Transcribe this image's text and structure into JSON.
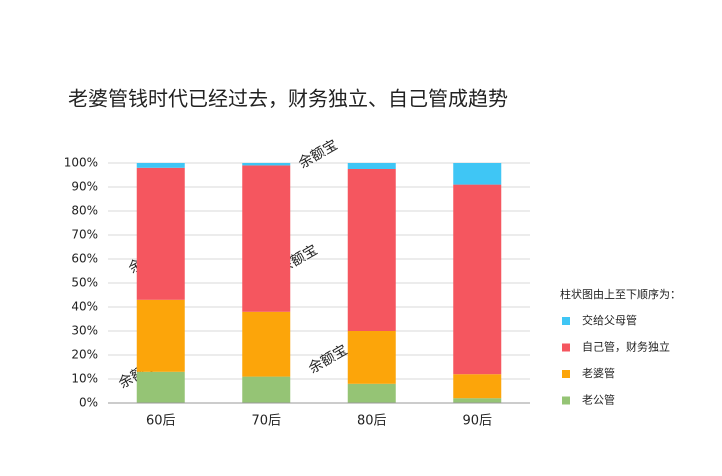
{
  "chart_data": {
    "type": "stacked_bar",
    "title": "老婆管钱时代已经过去，财务独立、自己管成趋势",
    "watermark": "余额宝",
    "categories": [
      "60后",
      "70后",
      "80后",
      "90后"
    ],
    "series": [
      {
        "name": "老公管",
        "color": "#95c475",
        "values": [
          13,
          11,
          8,
          2
        ]
      },
      {
        "name": "老婆管",
        "color": "#fca50a",
        "values": [
          30,
          27,
          22,
          10
        ]
      },
      {
        "name": "自己管，财务独立",
        "color": "#f5565f",
        "values": [
          55,
          61,
          67.5,
          79
        ]
      },
      {
        "name": "交给父母管",
        "color": "#3fc6f5",
        "values": [
          2,
          1,
          2.5,
          9
        ]
      }
    ],
    "legend_title": "柱状图由上至下顺序为：",
    "legend_position": "right",
    "ylim": [
      0,
      100
    ],
    "yticks": [
      {
        "value": 0,
        "label": "0%"
      },
      {
        "value": 10,
        "label": "10%"
      },
      {
        "value": 20,
        "label": "20%"
      },
      {
        "value": 30,
        "label": "30%"
      },
      {
        "value": 40,
        "label": "40%"
      },
      {
        "value": 50,
        "label": "50%"
      },
      {
        "value": 60,
        "label": "60%"
      },
      {
        "value": 70,
        "label": "70%"
      },
      {
        "value": 80,
        "label": "80%"
      },
      {
        "value": 90,
        "label": "90%"
      },
      {
        "value": 100,
        "label": "100%"
      }
    ],
    "grid": true
  }
}
